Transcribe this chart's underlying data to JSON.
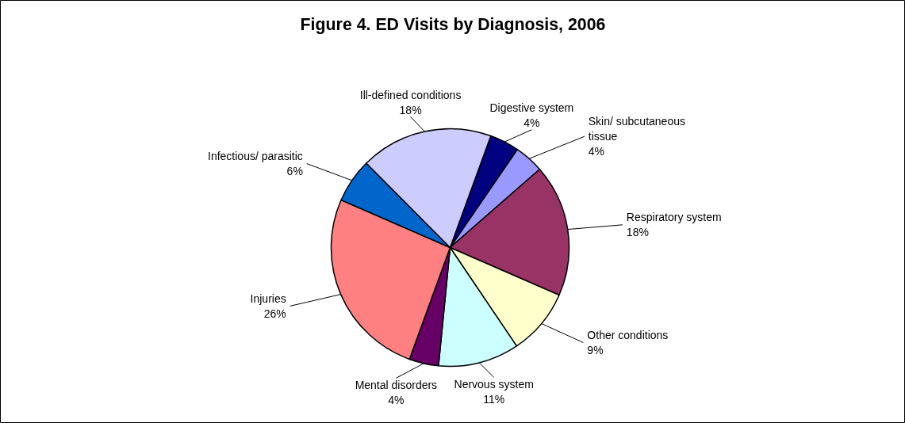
{
  "chart_data": {
    "type": "pie",
    "title": "Figure 4. ED Visits by Diagnosis, 2006",
    "categories": [
      "Digestive system",
      "Skin/ subcutaneous tissue",
      "Respiratory system",
      "Other conditions",
      "Nervous system",
      "Mental disorders",
      "Injuries",
      "Infectious/ parasitic",
      "Ill-defined conditions"
    ],
    "values": [
      4,
      4,
      18,
      9,
      11,
      4,
      26,
      6,
      18
    ],
    "colors": [
      "#000080",
      "#9999ff",
      "#993366",
      "#ffffcc",
      "#ccffff",
      "#660066",
      "#ff8080",
      "#0066cc",
      "#ccccff"
    ],
    "value_labels": [
      "4%",
      "4%",
      "18%",
      "9%",
      "11%",
      "4%",
      "26%",
      "6%",
      "18%"
    ],
    "legend": false
  }
}
